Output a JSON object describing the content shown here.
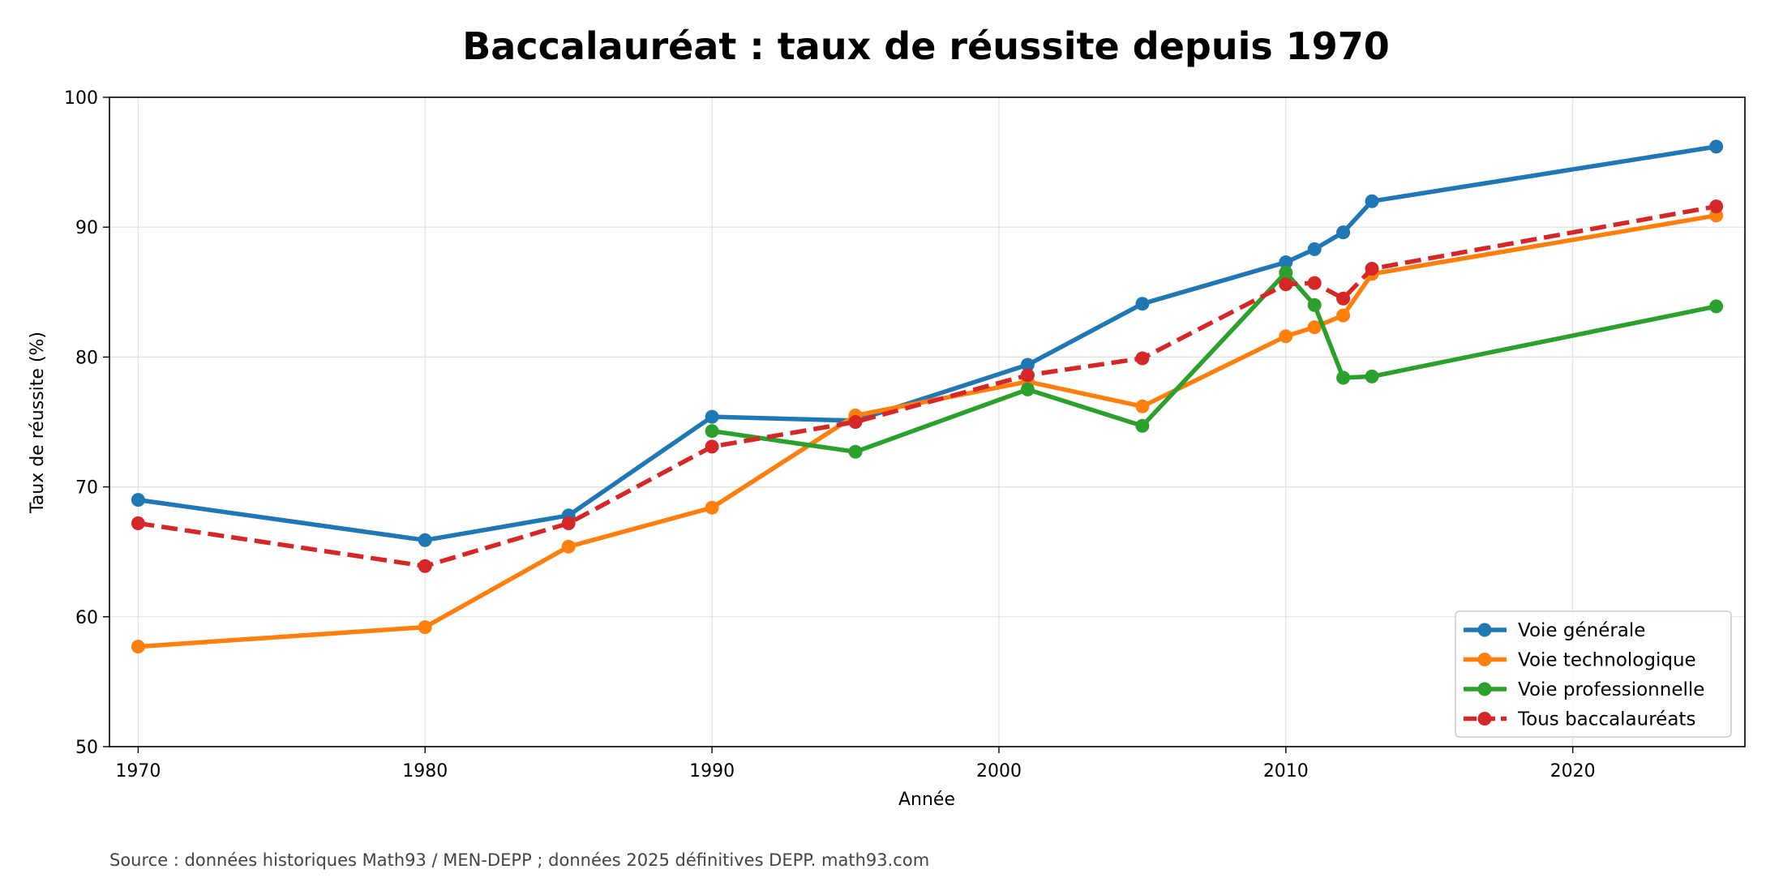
{
  "chart_data": {
    "type": "line",
    "title": "Baccalauréat : taux de réussite depuis 1970",
    "xlabel": "Année",
    "ylabel": "Taux de réussite (%)",
    "xlim": [
      1969,
      2026
    ],
    "ylim": [
      50,
      100
    ],
    "x_ticks": [
      1970,
      1980,
      1990,
      2000,
      2010,
      2020
    ],
    "y_ticks": [
      50,
      60,
      70,
      80,
      90,
      100
    ],
    "x_tick_labels": [
      "1970",
      "1980",
      "1990",
      "2000",
      "2010",
      "2020"
    ],
    "y_tick_labels": [
      "50",
      "60",
      "70",
      "80",
      "90",
      "100"
    ],
    "grid": true,
    "legend_position": "bottom-right",
    "series": [
      {
        "name": "Voie générale",
        "color": "#1f77b4",
        "dashed": false,
        "points": [
          [
            1970,
            69.0
          ],
          [
            1980,
            65.9
          ],
          [
            1985,
            67.8
          ],
          [
            1990,
            75.4
          ],
          [
            1995,
            75.1
          ],
          [
            2001,
            79.4
          ],
          [
            2005,
            84.1
          ],
          [
            2010,
            87.3
          ],
          [
            2011,
            88.3
          ],
          [
            2012,
            89.6
          ],
          [
            2013,
            92.0
          ],
          [
            2025,
            96.2
          ]
        ]
      },
      {
        "name": "Voie technologique",
        "color": "#ff7f0e",
        "dashed": false,
        "points": [
          [
            1970,
            57.7
          ],
          [
            1980,
            59.2
          ],
          [
            1985,
            65.4
          ],
          [
            1990,
            68.4
          ],
          [
            1995,
            75.5
          ],
          [
            2001,
            78.1
          ],
          [
            2005,
            76.2
          ],
          [
            2010,
            81.6
          ],
          [
            2011,
            82.3
          ],
          [
            2012,
            83.2
          ],
          [
            2013,
            86.4
          ],
          [
            2025,
            90.9
          ]
        ]
      },
      {
        "name": "Voie professionnelle",
        "color": "#2ca02c",
        "dashed": false,
        "points": [
          [
            1990,
            74.3
          ],
          [
            1995,
            72.7
          ],
          [
            2001,
            77.5
          ],
          [
            2005,
            74.7
          ],
          [
            2010,
            86.5
          ],
          [
            2011,
            84.0
          ],
          [
            2012,
            78.4
          ],
          [
            2013,
            78.5
          ],
          [
            2025,
            83.9
          ]
        ]
      },
      {
        "name": "Tous baccalauréats",
        "color": "#d62728",
        "dashed": true,
        "points": [
          [
            1970,
            67.2
          ],
          [
            1980,
            63.9
          ],
          [
            1985,
            67.2
          ],
          [
            1990,
            73.1
          ],
          [
            1995,
            75.0
          ],
          [
            2001,
            78.6
          ],
          [
            2005,
            79.9
          ],
          [
            2010,
            85.6
          ],
          [
            2011,
            85.7
          ],
          [
            2012,
            84.5
          ],
          [
            2013,
            86.8
          ],
          [
            2025,
            91.6
          ]
        ]
      }
    ],
    "source_note": "Source : données historiques Math93 / MEN-DEPP ; données 2025 définitives DEPP. math93.com"
  }
}
